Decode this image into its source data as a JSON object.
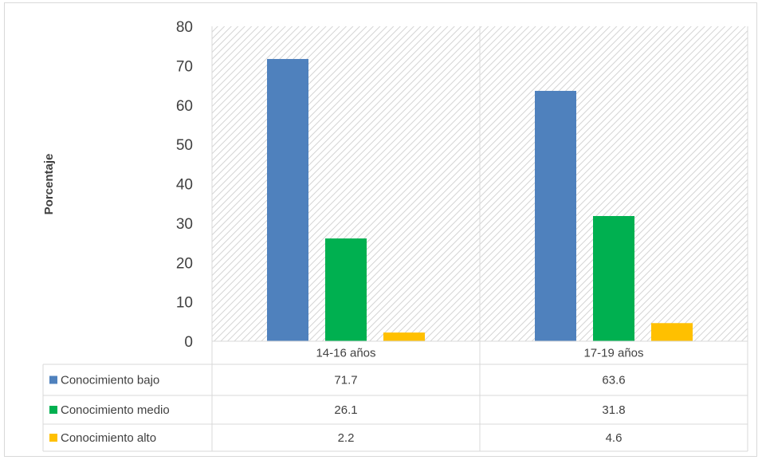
{
  "chart_data": {
    "type": "bar",
    "title": "",
    "xlabel": "",
    "ylabel": "Porcentaje",
    "ylim": [
      0,
      80
    ],
    "yticks": [
      0,
      10,
      20,
      30,
      40,
      50,
      60,
      70,
      80
    ],
    "categories": [
      "14-16 años",
      "17-19 años"
    ],
    "series": [
      {
        "name": "Conocimiento bajo",
        "values": [
          71.7,
          63.6
        ],
        "color": "#4f81bd"
      },
      {
        "name": "Conocimiento medio",
        "values": [
          26.1,
          31.8
        ],
        "color": "#00b050"
      },
      {
        "name": "Conocimiento alto",
        "values": [
          2.2,
          4.6
        ],
        "color": "#ffc000"
      }
    ],
    "legend_placement": "data-table",
    "grid": false,
    "data_table": true
  }
}
